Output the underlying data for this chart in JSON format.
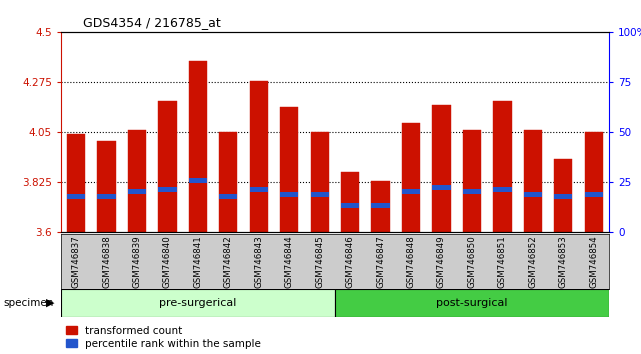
{
  "title": "GDS4354 / 216785_at",
  "samples": [
    "GSM746837",
    "GSM746838",
    "GSM746839",
    "GSM746840",
    "GSM746841",
    "GSM746842",
    "GSM746843",
    "GSM746844",
    "GSM746845",
    "GSM746846",
    "GSM746847",
    "GSM746848",
    "GSM746849",
    "GSM746850",
    "GSM746851",
    "GSM746852",
    "GSM746853",
    "GSM746854"
  ],
  "red_values": [
    4.04,
    4.01,
    4.06,
    4.19,
    4.37,
    4.05,
    4.28,
    4.16,
    4.05,
    3.87,
    3.83,
    4.09,
    4.17,
    4.06,
    4.19,
    4.06,
    3.93,
    4.05
  ],
  "blue_values": [
    3.76,
    3.76,
    3.78,
    3.79,
    3.83,
    3.76,
    3.79,
    3.77,
    3.77,
    3.72,
    3.72,
    3.78,
    3.8,
    3.78,
    3.79,
    3.77,
    3.76,
    3.77
  ],
  "ymin": 3.6,
  "ymax": 4.5,
  "yticks": [
    3.6,
    3.825,
    4.05,
    4.275,
    4.5
  ],
  "ytick_labels": [
    "3.6",
    "3.825",
    "4.05",
    "4.275",
    "4.5"
  ],
  "right_yticks": [
    0,
    25,
    50,
    75,
    100
  ],
  "right_ytick_labels": [
    "0",
    "25",
    "50",
    "75",
    "100%"
  ],
  "red_color": "#cc1100",
  "blue_color": "#2255cc",
  "pre_surgical_count": 9,
  "post_surgical_count": 9,
  "pre_color": "#ccffcc",
  "post_color": "#44cc44",
  "bar_width": 0.6,
  "bg_color": "#cccccc",
  "blue_bar_height": 0.022
}
